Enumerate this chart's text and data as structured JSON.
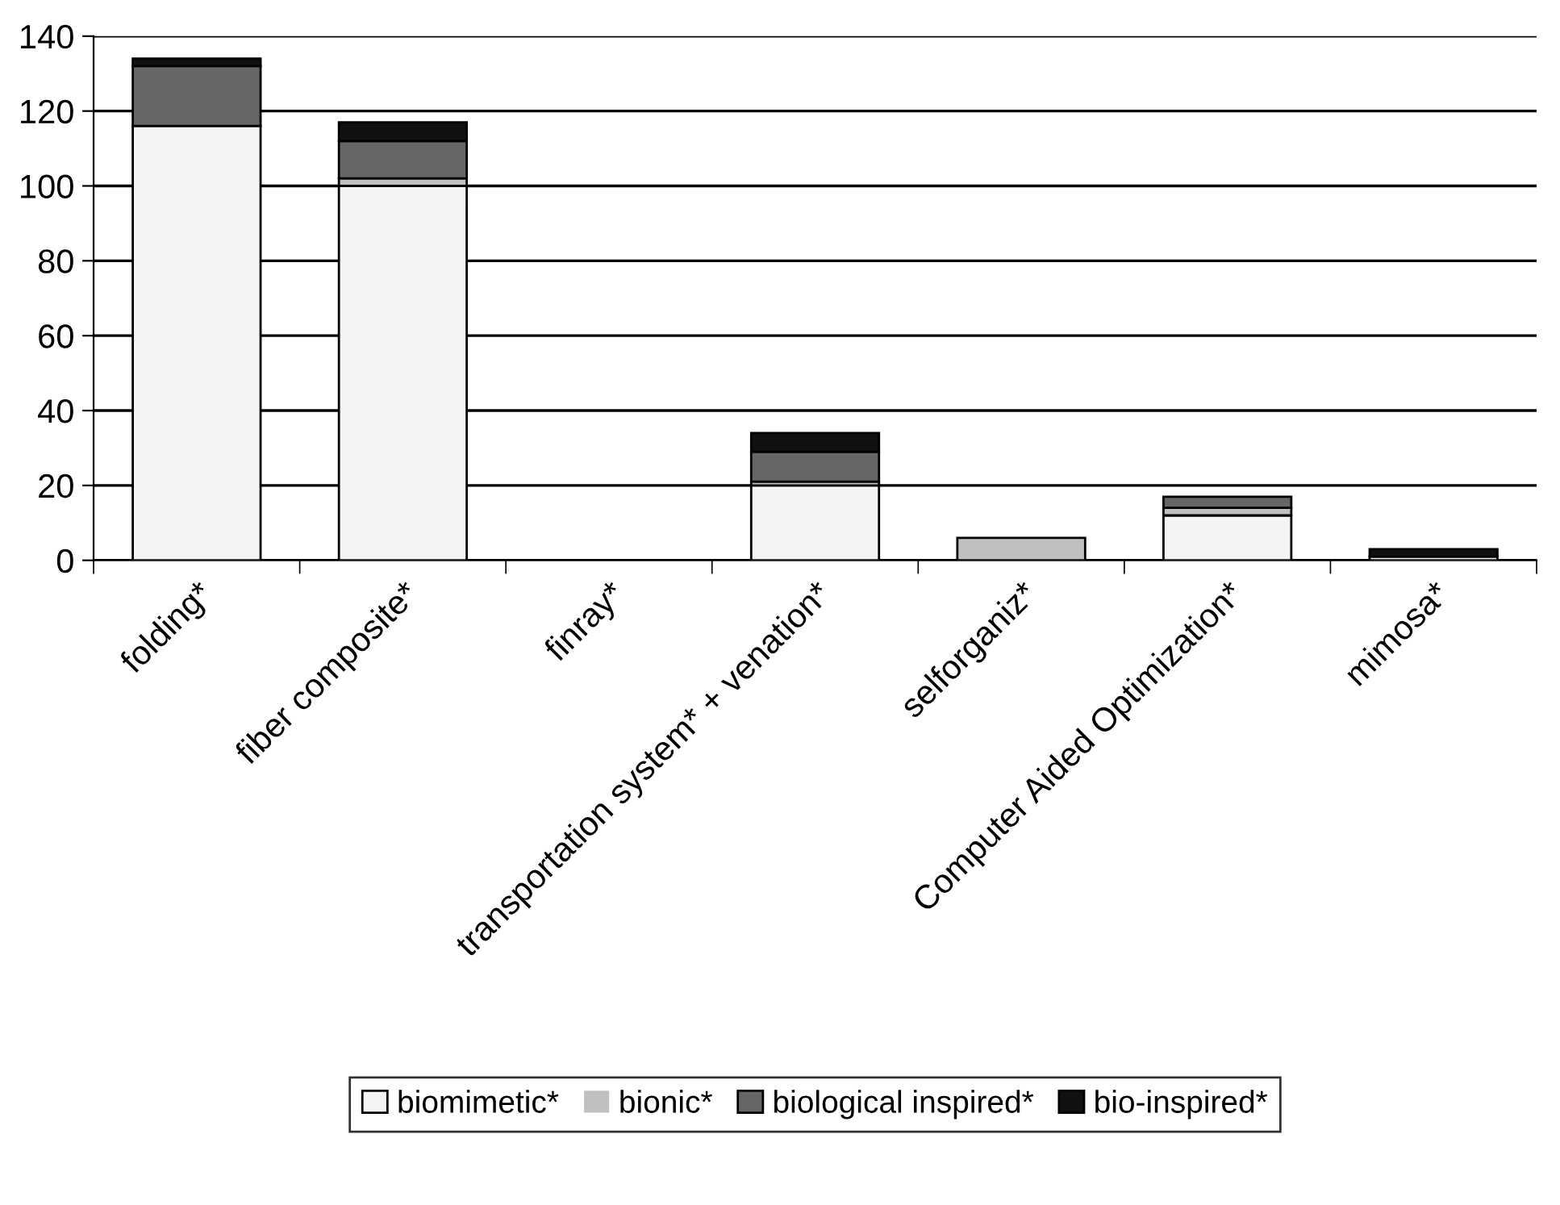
{
  "chart_data": {
    "type": "bar",
    "stacked": true,
    "categories": [
      "folding*",
      "fiber composite*",
      "finray*",
      "transportation system* + venation*",
      "selforganiz*",
      "Computer Aided Optimization*",
      "mimosa*"
    ],
    "series": [
      {
        "name": "biomimetic*",
        "color": "#f4f4f4",
        "values": [
          116,
          100,
          0,
          20,
          0,
          12,
          1
        ]
      },
      {
        "name": "bionic*",
        "color": "#c0c0c0",
        "values": [
          0,
          2,
          0,
          1,
          6,
          2,
          0
        ]
      },
      {
        "name": "biological inspired*",
        "color": "#666666",
        "values": [
          16,
          10,
          0,
          8,
          0,
          3,
          0
        ]
      },
      {
        "name": "bio-inspired*",
        "color": "#111111",
        "values": [
          2,
          5,
          0,
          5,
          0,
          0,
          2
        ]
      }
    ],
    "ylim": [
      0,
      140
    ],
    "yticks": [
      0,
      20,
      40,
      60,
      80,
      100,
      120,
      140
    ],
    "grid": "y",
    "legend": "bottom"
  }
}
